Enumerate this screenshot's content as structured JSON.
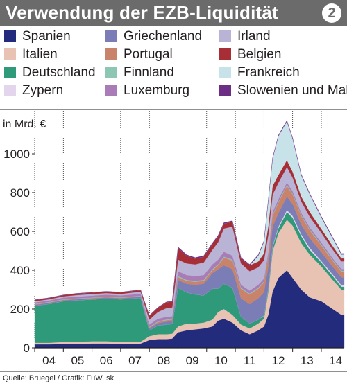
{
  "header": {
    "title": "Verwendung der EZB-Liquidität",
    "badge": "2"
  },
  "source": "Quelle: Bruegel / Grafik: FuW, sk",
  "chart_data": {
    "type": "area",
    "stacked": true,
    "ylabel": "in Mrd. €",
    "ylim": [
      0,
      1200
    ],
    "yticks": [
      0,
      200,
      400,
      600,
      800,
      1000
    ],
    "xlim": [
      2004.0,
      2014.8
    ],
    "xtick_labels": [
      "04",
      "05",
      "06",
      "07",
      "08",
      "09",
      "10",
      "11",
      "12",
      "13",
      "14"
    ],
    "grid": "vertical-dotted",
    "legend_position": "top",
    "x": [
      2004.0,
      2004.5,
      2005.0,
      2005.5,
      2006.0,
      2006.5,
      2007.0,
      2007.5,
      2007.7,
      2008.0,
      2008.3,
      2008.6,
      2008.8,
      2009.0,
      2009.3,
      2009.6,
      2009.9,
      2010.2,
      2010.4,
      2010.6,
      2010.9,
      2011.2,
      2011.5,
      2011.8,
      2012.0,
      2012.15,
      2012.3,
      2012.5,
      2012.8,
      2013.0,
      2013.3,
      2013.6,
      2014.0,
      2014.4,
      2014.7,
      2014.8
    ],
    "series": [
      {
        "name": "Spanien",
        "color": "#232b7c",
        "values": [
          18,
          18,
          20,
          20,
          22,
          22,
          20,
          20,
          22,
          40,
          45,
          45,
          48,
          80,
          90,
          95,
          100,
          110,
          140,
          150,
          130,
          90,
          70,
          90,
          110,
          170,
          290,
          360,
          400,
          360,
          300,
          260,
          240,
          200,
          170,
          170
        ]
      },
      {
        "name": "Italien",
        "color": "#e8c3b4",
        "values": [
          8,
          8,
          10,
          10,
          12,
          12,
          10,
          10,
          10,
          20,
          25,
          25,
          25,
          30,
          35,
          30,
          30,
          35,
          45,
          50,
          40,
          30,
          30,
          35,
          40,
          120,
          210,
          230,
          260,
          270,
          240,
          220,
          180,
          150,
          130,
          130
        ]
      },
      {
        "name": "Deutschland",
        "color": "#2e9a7a",
        "values": [
          190,
          200,
          210,
          215,
          215,
          220,
          220,
          225,
          225,
          30,
          45,
          50,
          50,
          200,
          160,
          150,
          140,
          160,
          120,
          130,
          140,
          40,
          25,
          20,
          15,
          15,
          20,
          25,
          40,
          40,
          35,
          25,
          20,
          20,
          15,
          15
        ]
      },
      {
        "name": "Zypern",
        "color": "#e3d5eb",
        "values": [
          0,
          0,
          0,
          0,
          0,
          0,
          0,
          0,
          0,
          0,
          0,
          0,
          0,
          0,
          0,
          0,
          0,
          0,
          0,
          0,
          0,
          0,
          0,
          0,
          2,
          3,
          5,
          8,
          10,
          10,
          10,
          10,
          8,
          8,
          8,
          8
        ]
      },
      {
        "name": "Griechenland",
        "color": "#7b7db6",
        "values": [
          5,
          5,
          5,
          5,
          5,
          5,
          5,
          6,
          6,
          10,
          12,
          15,
          15,
          40,
          45,
          50,
          60,
          80,
          100,
          95,
          95,
          95,
          100,
          110,
          120,
          110,
          100,
          70,
          70,
          60,
          50,
          50,
          45,
          40,
          40,
          40
        ]
      },
      {
        "name": "Portugal",
        "color": "#c9836b",
        "values": [
          3,
          3,
          3,
          3,
          3,
          3,
          3,
          3,
          3,
          5,
          6,
          8,
          8,
          15,
          15,
          15,
          15,
          15,
          20,
          40,
          45,
          50,
          50,
          50,
          50,
          55,
          55,
          55,
          55,
          50,
          45,
          40,
          35,
          30,
          30,
          30
        ]
      },
      {
        "name": "Finnland",
        "color": "#8ec6b4",
        "values": [
          2,
          2,
          2,
          2,
          2,
          2,
          2,
          2,
          2,
          3,
          3,
          3,
          3,
          5,
          5,
          5,
          5,
          5,
          5,
          5,
          5,
          5,
          5,
          5,
          5,
          5,
          5,
          5,
          5,
          5,
          5,
          5,
          5,
          5,
          5,
          5
        ]
      },
      {
        "name": "Luxemburg",
        "color": "#a97cb8",
        "values": [
          8,
          8,
          9,
          9,
          10,
          10,
          10,
          10,
          10,
          12,
          14,
          14,
          14,
          25,
          25,
          25,
          25,
          25,
          25,
          25,
          20,
          15,
          15,
          15,
          15,
          15,
          15,
          12,
          12,
          12,
          10,
          10,
          10,
          8,
          8,
          8
        ]
      },
      {
        "name": "Irland",
        "color": "#b9b3d6",
        "values": [
          6,
          6,
          6,
          8,
          8,
          8,
          8,
          10,
          10,
          25,
          35,
          45,
          45,
          60,
          60,
          60,
          65,
          75,
          90,
          120,
          150,
          110,
          100,
          90,
          95,
          90,
          90,
          85,
          80,
          70,
          60,
          55,
          50,
          45,
          40,
          40
        ]
      },
      {
        "name": "Belgien",
        "color": "#a72e34",
        "values": [
          7,
          7,
          7,
          8,
          8,
          8,
          8,
          9,
          9,
          20,
          22,
          30,
          30,
          60,
          40,
          30,
          30,
          30,
          30,
          25,
          25,
          25,
          30,
          30,
          35,
          45,
          45,
          40,
          35,
          30,
          25,
          25,
          20,
          18,
          15,
          15
        ]
      },
      {
        "name": "Frankreich",
        "color": "#c7e2e8",
        "values": [
          0,
          0,
          0,
          0,
          0,
          0,
          0,
          0,
          0,
          0,
          0,
          0,
          0,
          0,
          0,
          0,
          0,
          0,
          0,
          0,
          0,
          0,
          0,
          30,
          60,
          130,
          140,
          200,
          200,
          170,
          110,
          90,
          60,
          40,
          20,
          20
        ]
      },
      {
        "name": "Slowenien und Malta",
        "color": "#6c2d84",
        "values": [
          1,
          1,
          1,
          1,
          1,
          1,
          1,
          1,
          1,
          2,
          2,
          2,
          2,
          5,
          5,
          5,
          5,
          5,
          5,
          5,
          5,
          5,
          5,
          5,
          5,
          5,
          5,
          5,
          5,
          5,
          5,
          5,
          5,
          5,
          5,
          5
        ]
      }
    ]
  }
}
